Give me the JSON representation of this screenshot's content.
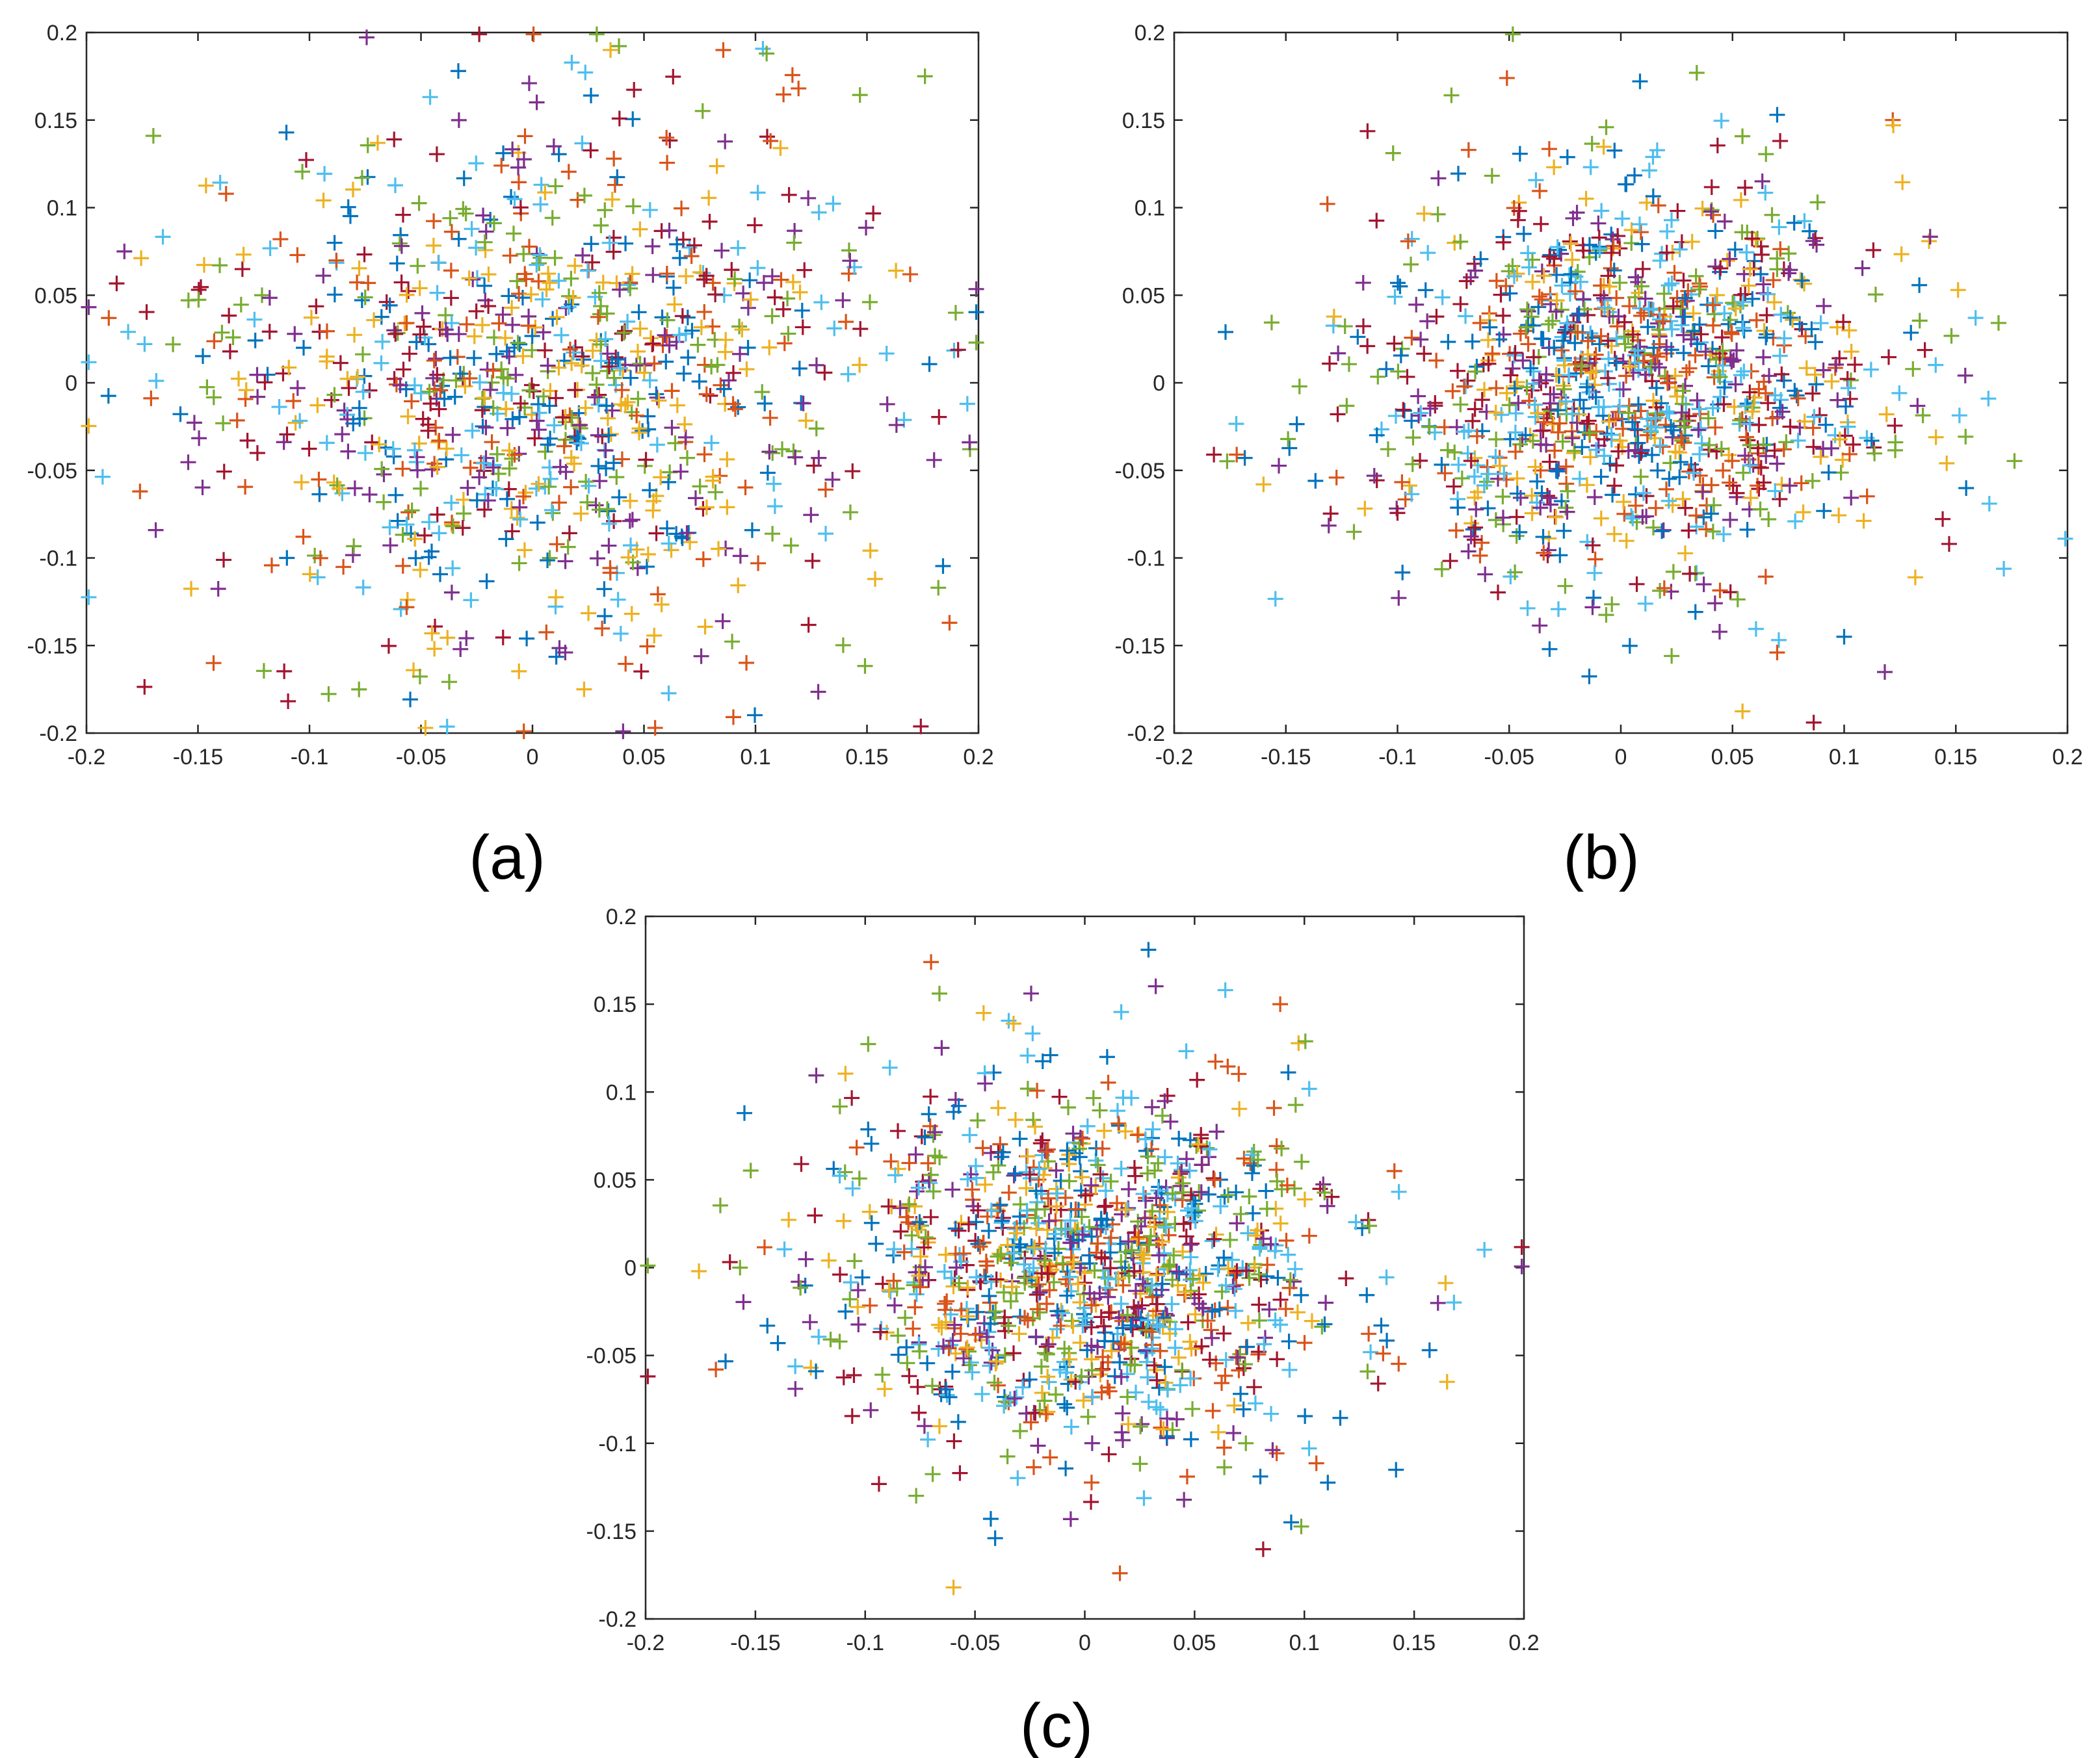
{
  "figure": {
    "panels": [
      "(a)",
      "(b)",
      "(c)"
    ]
  },
  "palette": [
    "#0072BD",
    "#D95319",
    "#EDB120",
    "#7E2F8E",
    "#77AC30",
    "#4DBEEE",
    "#A2142F"
  ],
  "chart_data": [
    {
      "type": "scatter",
      "panel_label": "(a)",
      "title": "",
      "xlabel": "",
      "ylabel": "",
      "marker": "+",
      "xlim": [
        -0.2,
        0.2
      ],
      "ylim": [
        -0.2,
        0.2
      ],
      "xticks": [
        -0.2,
        -0.15,
        -0.1,
        -0.05,
        0,
        0.05,
        0.1,
        0.15,
        0.2
      ],
      "yticks": [
        -0.2,
        -0.15,
        -0.1,
        -0.05,
        0,
        0.05,
        0.1,
        0.15,
        0.2
      ],
      "xtick_labels": [
        "-0.2",
        "-0.15",
        "-0.1",
        "-0.05",
        "0",
        "0.05",
        "0.1",
        "0.15",
        "0.2"
      ],
      "ytick_labels": [
        "-0.2",
        "-0.15",
        "-0.1",
        "-0.05",
        "0",
        "0.05",
        "0.1",
        "0.15",
        "0.2"
      ],
      "grid": false,
      "point_count": 950,
      "distribution": {
        "center_x": 0.0,
        "center_y": 0.0,
        "std_x": 0.075,
        "std_y": 0.075,
        "seed": 11
      },
      "highlight_points": [
        {
          "x": 0.176,
          "y": 0.175,
          "series": 4
        },
        {
          "x": -0.17,
          "y": 0.141,
          "series": 4
        },
        {
          "x": 0.105,
          "y": 0.188,
          "series": 4
        },
        {
          "x": 0.035,
          "y": 0.19,
          "series": 2
        },
        {
          "x": -0.19,
          "y": 0.037,
          "series": 1
        },
        {
          "x": -0.176,
          "y": -0.062,
          "series": 1
        },
        {
          "x": 0.195,
          "y": -0.012,
          "series": 5
        },
        {
          "x": 0.196,
          "y": -0.034,
          "series": 3
        },
        {
          "x": 0.187,
          "y": -0.137,
          "series": 1
        },
        {
          "x": 0.182,
          "y": -0.117,
          "series": 4
        },
        {
          "x": 0.055,
          "y": -0.197,
          "series": 1
        },
        {
          "x": -0.048,
          "y": -0.197,
          "series": 2
        },
        {
          "x": -0.143,
          "y": -0.16,
          "series": 1
        },
        {
          "x": 0.163,
          "y": 0.064,
          "series": 2
        },
        {
          "x": -0.183,
          "y": 0.075,
          "series": 3
        }
      ]
    },
    {
      "type": "scatter",
      "panel_label": "(b)",
      "title": "",
      "xlabel": "",
      "ylabel": "",
      "marker": "+",
      "xlim": [
        -0.2,
        0.2
      ],
      "ylim": [
        -0.2,
        0.2
      ],
      "xticks": [
        -0.2,
        -0.15,
        -0.1,
        -0.05,
        0,
        0.05,
        0.1,
        0.15,
        0.2
      ],
      "yticks": [
        -0.2,
        -0.15,
        -0.1,
        -0.05,
        0,
        0.05,
        0.1,
        0.15,
        0.2
      ],
      "xtick_labels": [
        "-0.2",
        "-0.15",
        "-0.1",
        "-0.05",
        "0",
        "0.05",
        "0.1",
        "0.15",
        "0.2"
      ],
      "ytick_labels": [
        "-0.2",
        "-0.15",
        "-0.1",
        "-0.05",
        "0",
        "0.05",
        "0.1",
        "0.15",
        "0.2"
      ],
      "grid": false,
      "point_count": 1100,
      "distribution": {
        "center_x": 0.0,
        "center_y": 0.0,
        "std_x": 0.06,
        "std_y": 0.055,
        "seed": 23
      },
      "highlight_points": [
        {
          "x": -0.177,
          "y": 0.029,
          "series": 0
        },
        {
          "x": -0.172,
          "y": -0.041,
          "series": 1
        },
        {
          "x": -0.16,
          "y": -0.058,
          "series": 2
        },
        {
          "x": 0.034,
          "y": 0.177,
          "series": 4
        },
        {
          "x": -0.051,
          "y": 0.174,
          "series": 1
        },
        {
          "x": 0.151,
          "y": 0.053,
          "series": 2
        },
        {
          "x": 0.165,
          "y": -0.069,
          "series": 5
        },
        {
          "x": 0.147,
          "y": -0.092,
          "series": 6
        },
        {
          "x": 0.07,
          "y": -0.154,
          "series": 1
        },
        {
          "x": 0.1,
          "y": -0.145,
          "series": 0
        },
        {
          "x": 0.122,
          "y": 0.147,
          "series": 2
        },
        {
          "x": 0.07,
          "y": 0.153,
          "series": 0
        }
      ]
    },
    {
      "type": "scatter",
      "panel_label": "(c)",
      "title": "",
      "xlabel": "",
      "ylabel": "",
      "marker": "+",
      "xlim": [
        -0.2,
        0.2
      ],
      "ylim": [
        -0.2,
        0.2
      ],
      "xticks": [
        -0.2,
        -0.15,
        -0.1,
        -0.05,
        0,
        0.05,
        0.1,
        0.15,
        0.2
      ],
      "yticks": [
        -0.2,
        -0.15,
        -0.1,
        -0.05,
        0,
        0.05,
        0.1,
        0.15,
        0.2
      ],
      "xtick_labels": [
        "-0.2",
        "-0.15",
        "-0.1",
        "-0.05",
        "0",
        "0.05",
        "0.1",
        "0.15",
        "0.2"
      ],
      "ytick_labels": [
        "-0.2",
        "-0.15",
        "-0.1",
        "-0.05",
        "0",
        "0.05",
        "0.1",
        "0.15",
        "0.2"
      ],
      "grid": false,
      "point_count": 1100,
      "distribution": {
        "center_x": 0.0,
        "center_y": 0.0,
        "std_x": 0.06,
        "std_y": 0.055,
        "seed": 37
      },
      "highlight_points": [
        {
          "x": 0.029,
          "y": 0.181,
          "series": 0
        },
        {
          "x": -0.07,
          "y": 0.174,
          "series": 1
        },
        {
          "x": -0.168,
          "y": -0.058,
          "series": 1
        },
        {
          "x": 0.016,
          "y": -0.174,
          "series": 1
        },
        {
          "x": 0.165,
          "y": -0.065,
          "series": 2
        },
        {
          "x": 0.157,
          "y": -0.047,
          "series": 0
        },
        {
          "x": 0.141,
          "y": 0.055,
          "series": 1
        },
        {
          "x": 0.094,
          "y": -0.145,
          "series": 0
        },
        {
          "x": 0.064,
          "y": 0.158,
          "series": 5
        },
        {
          "x": -0.157,
          "y": 0.0,
          "series": 4
        },
        {
          "x": -0.155,
          "y": 0.088,
          "series": 0
        },
        {
          "x": 0.089,
          "y": 0.15,
          "series": 1
        }
      ]
    }
  ]
}
